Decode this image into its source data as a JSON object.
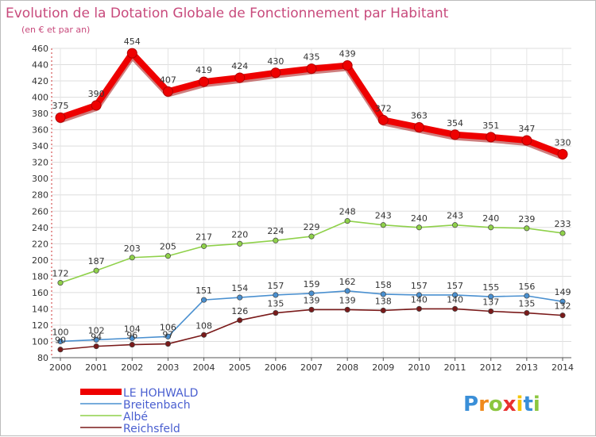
{
  "chart_data": {
    "type": "line",
    "title": "Evolution de la Dotation Globale de Fonctionnement par Habitant",
    "subtitle": "(en € et par an)",
    "xlabel": "",
    "ylabel": "",
    "x": [
      "2000",
      "2001",
      "2002",
      "2003",
      "2004",
      "2005",
      "2006",
      "2007",
      "2008",
      "2009",
      "2010",
      "2011",
      "2012",
      "2013",
      "2014"
    ],
    "ylim": [
      80,
      460
    ],
    "ytick_step": 20,
    "grid": true,
    "legend_position": "bottom-left",
    "series": [
      {
        "name": "LE HOHWALD",
        "color": "#ee0000",
        "values": [
          375,
          390,
          454,
          407,
          419,
          424,
          430,
          435,
          439,
          372,
          363,
          354,
          351,
          347,
          330
        ],
        "labels": [
          "375",
          "390",
          "454",
          "407",
          "419",
          "424",
          "430",
          "435",
          "439",
          "372",
          "363",
          "354",
          "351",
          "347",
          "330"
        ]
      },
      {
        "name": "Breitenbach",
        "color": "#4a90d0",
        "values": [
          100,
          102,
          104,
          106,
          151,
          154,
          157,
          159,
          162,
          158,
          157,
          157,
          155,
          156,
          149
        ],
        "labels": [
          "100",
          "102",
          "104",
          "106",
          "151",
          "154",
          "157",
          "159",
          "162",
          "158",
          "157",
          "157",
          "155",
          "156",
          "149"
        ]
      },
      {
        "name": "Albé",
        "color": "#8fd14a",
        "values": [
          172,
          187,
          203,
          205,
          217,
          220,
          224,
          229,
          248,
          243,
          240,
          243,
          240,
          239,
          233
        ],
        "labels": [
          "172",
          "187",
          "203",
          "205",
          "217",
          "220",
          "224",
          "229",
          "248",
          "243",
          "240",
          "243",
          "240",
          "239",
          "233"
        ]
      },
      {
        "name": "Reichsfeld",
        "color": "#7a1a1a",
        "values": [
          90,
          94,
          96,
          97,
          108,
          126,
          135,
          139,
          139,
          138,
          140,
          140,
          137,
          135,
          132
        ],
        "labels": [
          "90",
          "94",
          "96",
          "97",
          "108",
          "126",
          "135",
          "139",
          "139",
          "138",
          "140",
          "140",
          "137",
          "135",
          "132"
        ]
      }
    ]
  },
  "logo": {
    "letters": [
      "P",
      "r",
      "o",
      "x",
      "i",
      "t",
      "i"
    ],
    "colors": [
      "#3a8fd8",
      "#f08a1c",
      "#8cc63f",
      "#e8312f",
      "#f5c400",
      "#3a8fd8",
      "#8cc63f"
    ]
  }
}
